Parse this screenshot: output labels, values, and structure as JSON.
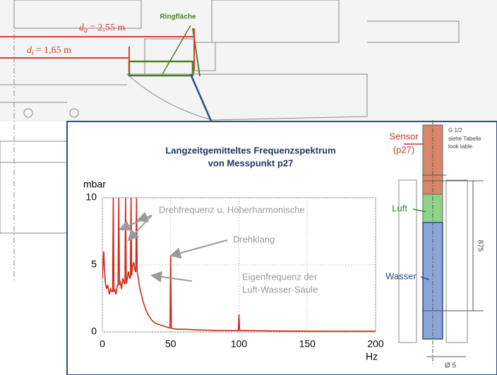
{
  "chart_data": {
    "type": "line",
    "title": [
      "Langzeitgemitteltes Frequenzspektrum",
      "von Messpunkt p27"
    ],
    "ylabel": "mbar",
    "xlabel": "Hz",
    "x": [
      0,
      1,
      2,
      3,
      4,
      5,
      6,
      7,
      7.5,
      8,
      8.5,
      9,
      10,
      11,
      11.5,
      12,
      12.5,
      13,
      14,
      15,
      16,
      16.5,
      17,
      17.5,
      18,
      19,
      20,
      20.5,
      21,
      21.5,
      22,
      23,
      24,
      24.5,
      25,
      25.5,
      26,
      27,
      28,
      30,
      32,
      34,
      36,
      38,
      40,
      43,
      46,
      49,
      49.5,
      50,
      50.5,
      51,
      55,
      60,
      70,
      80,
      90,
      99,
      99.5,
      100,
      100.5,
      101,
      120,
      140,
      160,
      180,
      200
    ],
    "series": [
      {
        "color": "#cc2a1a",
        "values": [
          4,
          6,
          3.8,
          3.2,
          3.5,
          2.8,
          3.2,
          3,
          3,
          10,
          3,
          3.2,
          2.8,
          3.5,
          3.5,
          10,
          3.5,
          3.8,
          3.2,
          4,
          3.6,
          3.6,
          10,
          3.6,
          3.8,
          4.5,
          4,
          4,
          10,
          4.2,
          4.8,
          5.2,
          4.5,
          4.5,
          10,
          4.5,
          4.2,
          3.5,
          3,
          2.2,
          1.6,
          1.2,
          0.9,
          0.7,
          0.6,
          0.5,
          0.4,
          0.3,
          0.3,
          5.7,
          0.3,
          0.25,
          0.2,
          0.2,
          0.15,
          0.12,
          0.1,
          0.1,
          0.1,
          1.3,
          0.1,
          0.1,
          0.08,
          0.06,
          0.05,
          0.05,
          0.05
        ]
      }
    ],
    "xlim": [
      0,
      200
    ],
    "xticks": [
      0,
      50,
      100,
      150,
      200
    ],
    "ylim": [
      0,
      10
    ],
    "yticks": [
      0,
      5,
      10
    ],
    "grid": true,
    "annotations": [
      "Drehfrequenz u. Höherharmonische",
      "Drehklang",
      "Eigenfrequenz der",
      "Luft-Wasser-Säule"
    ]
  },
  "drawing": {
    "ring_label": "Ringfläche",
    "outer": {
      "symbol": "d",
      "index": "a",
      "value": "= 2,55 m"
    },
    "inner": {
      "symbol": "d",
      "index": "i",
      "value": "= 1,65 m"
    },
    "sensor_label": [
      "Sensor",
      "(p27)"
    ],
    "air": "Luft",
    "water": "Wasser",
    "thread": [
      "G 1/2",
      "siehe Tabelle",
      "look table"
    ],
    "length": "875",
    "diameter": "Ø 5"
  }
}
